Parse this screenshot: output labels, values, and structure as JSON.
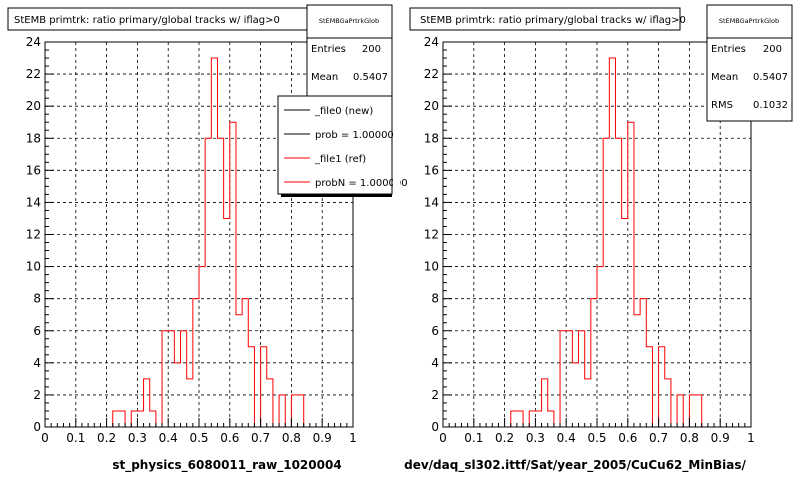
{
  "colors": {
    "ref": "#ff0000",
    "new": "#000000",
    "frame": "#000000",
    "grid": "#000000"
  },
  "corner_text": "",
  "chart_data": [
    {
      "type": "bar",
      "title": "StEMB primtrk: ratio primary/global tracks w/ iflag>0",
      "xlabel": "st_physics_6080011_raw_1020004",
      "xlim": [
        0,
        1
      ],
      "ylim": [
        0,
        24
      ],
      "xticks": [
        "0",
        "0.1",
        "0.2",
        "0.3",
        "0.4",
        "0.5",
        "0.6",
        "0.7",
        "0.8",
        "0.9",
        "1"
      ],
      "yticks": [
        "0",
        "2",
        "4",
        "6",
        "8",
        "10",
        "12",
        "14",
        "16",
        "18",
        "20",
        "22",
        "24"
      ],
      "grid": true,
      "bin_width": 0.02,
      "series": [
        {
          "name": "_file1 (ref)",
          "x_start": 0,
          "values": [
            0,
            0,
            0,
            0,
            0,
            0,
            0,
            0,
            0,
            0,
            0,
            1,
            1,
            0,
            1,
            1,
            3,
            1,
            0,
            6,
            6,
            4,
            6,
            3,
            8,
            10,
            18,
            23,
            18,
            13,
            19,
            7,
            8,
            5,
            0,
            5,
            3,
            0,
            2,
            0,
            2,
            2,
            0,
            0,
            0,
            0,
            0,
            0,
            0,
            0
          ]
        }
      ],
      "stats": {
        "title": "StEMBGaPrtrkGlob",
        "entries_label": "Entries",
        "entries": "200",
        "mean_label": "Mean",
        "mean": "0.5407"
      },
      "legend": [
        {
          "label": "_file0 (new)",
          "color": "#000000"
        },
        {
          "label": "prob = 1.000000",
          "color": "#000000"
        },
        {
          "label": "_file1 (ref)",
          "color": "#ff0000"
        },
        {
          "label": "probN = 1.000000",
          "color": "#ff0000"
        }
      ]
    },
    {
      "type": "bar",
      "title": "StEMB primtrk: ratio primary/global tracks w/ iflag>0",
      "xlabel": "dev/daq_sl302.ittf/Sat/year_2005/CuCu62_MinBias/",
      "xlim": [
        0,
        1
      ],
      "ylim": [
        0,
        24
      ],
      "xticks": [
        "0",
        "0.1",
        "0.2",
        "0.3",
        "0.4",
        "0.5",
        "0.6",
        "0.7",
        "0.8",
        "0.9",
        "1"
      ],
      "yticks": [
        "0",
        "2",
        "4",
        "6",
        "8",
        "10",
        "12",
        "14",
        "16",
        "18",
        "20",
        "22",
        "24"
      ],
      "grid": true,
      "bin_width": 0.02,
      "series": [
        {
          "name": "_file1 (ref)",
          "x_start": 0,
          "values": [
            0,
            0,
            0,
            0,
            0,
            0,
            0,
            0,
            0,
            0,
            0,
            1,
            1,
            0,
            1,
            1,
            3,
            1,
            0,
            6,
            6,
            4,
            6,
            3,
            8,
            10,
            18,
            23,
            18,
            13,
            19,
            7,
            8,
            5,
            0,
            5,
            3,
            0,
            2,
            0,
            2,
            2,
            0,
            0,
            0,
            0,
            0,
            0,
            0,
            0
          ]
        }
      ],
      "stats": {
        "title": "StEMBGaPrtrkGlob",
        "entries_label": "Entries",
        "entries": "200",
        "mean_label": "Mean",
        "mean": "0.5407",
        "rms_label": "RMS",
        "rms": "0.1032"
      }
    }
  ]
}
